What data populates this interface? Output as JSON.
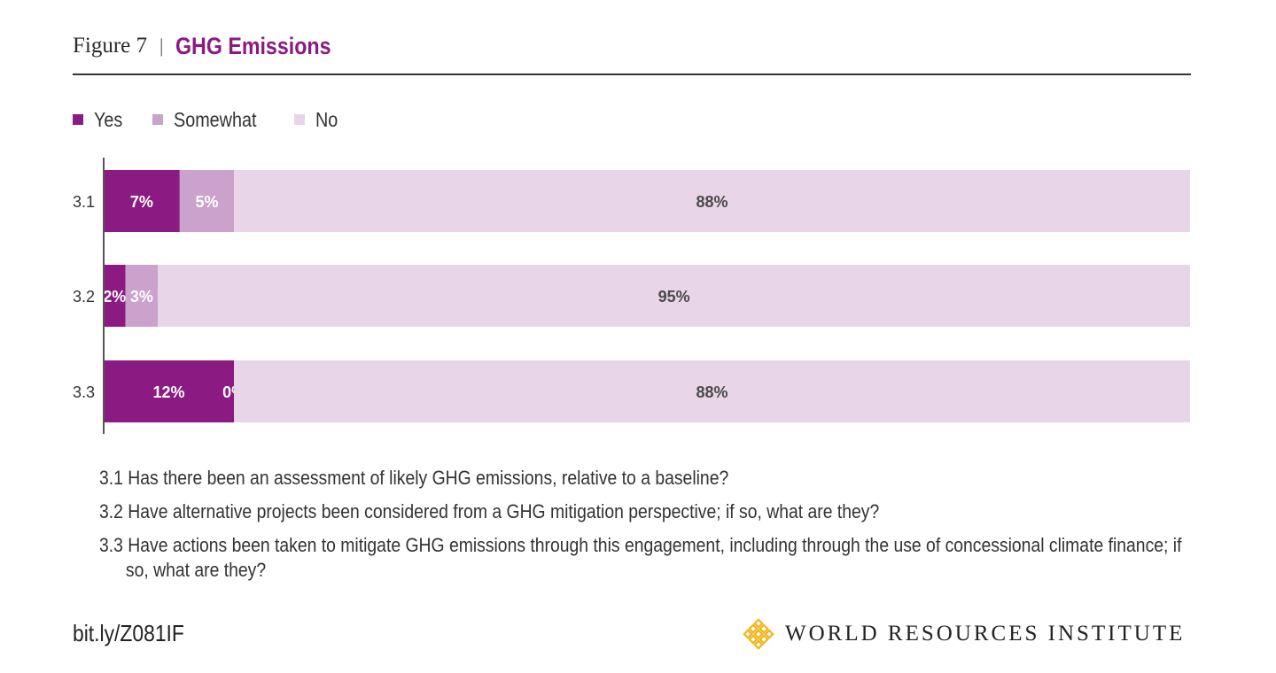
{
  "header": {
    "figure_label": "Figure 7",
    "separator": "|",
    "title": "GHG Emissions"
  },
  "colors": {
    "yes": "#8b1a82",
    "somewhat": "#cba2cb",
    "no": "#e8d6e8",
    "title": "#8b1a82",
    "logo": "#f2b51a"
  },
  "chart_data": {
    "type": "bar",
    "orientation": "horizontal",
    "stacked": true,
    "categories": [
      "3.1",
      "3.2",
      "3.3"
    ],
    "series": [
      {
        "name": "Yes",
        "values": [
          7,
          2,
          12
        ],
        "labels": [
          "7%",
          "2%",
          "12%"
        ]
      },
      {
        "name": "Somewhat",
        "values": [
          5,
          3,
          0
        ],
        "labels": [
          "5%",
          "3%",
          "0%"
        ]
      },
      {
        "name": "No",
        "values": [
          88,
          95,
          88
        ],
        "labels": [
          "88%",
          "95%",
          "88%"
        ]
      }
    ],
    "xlim": [
      0,
      100
    ],
    "legend_position": "top-left",
    "grid": false
  },
  "notes": [
    "3.1 Has there been an assessment of likely GHG emissions, relative to a baseline?",
    "3.2 Have alternative projects been considered from a GHG mitigation perspective; if so, what are they?",
    "3.3 Have actions been taken to mitigate GHG emissions through this engagement, including through the use of concessional climate finance; if so, what are they?"
  ],
  "footer": {
    "source_link": "bit.ly/Z081IF",
    "logo_text": "WORLD RESOURCES INSTITUTE",
    "logo_icon": "wri-logo-icon"
  }
}
